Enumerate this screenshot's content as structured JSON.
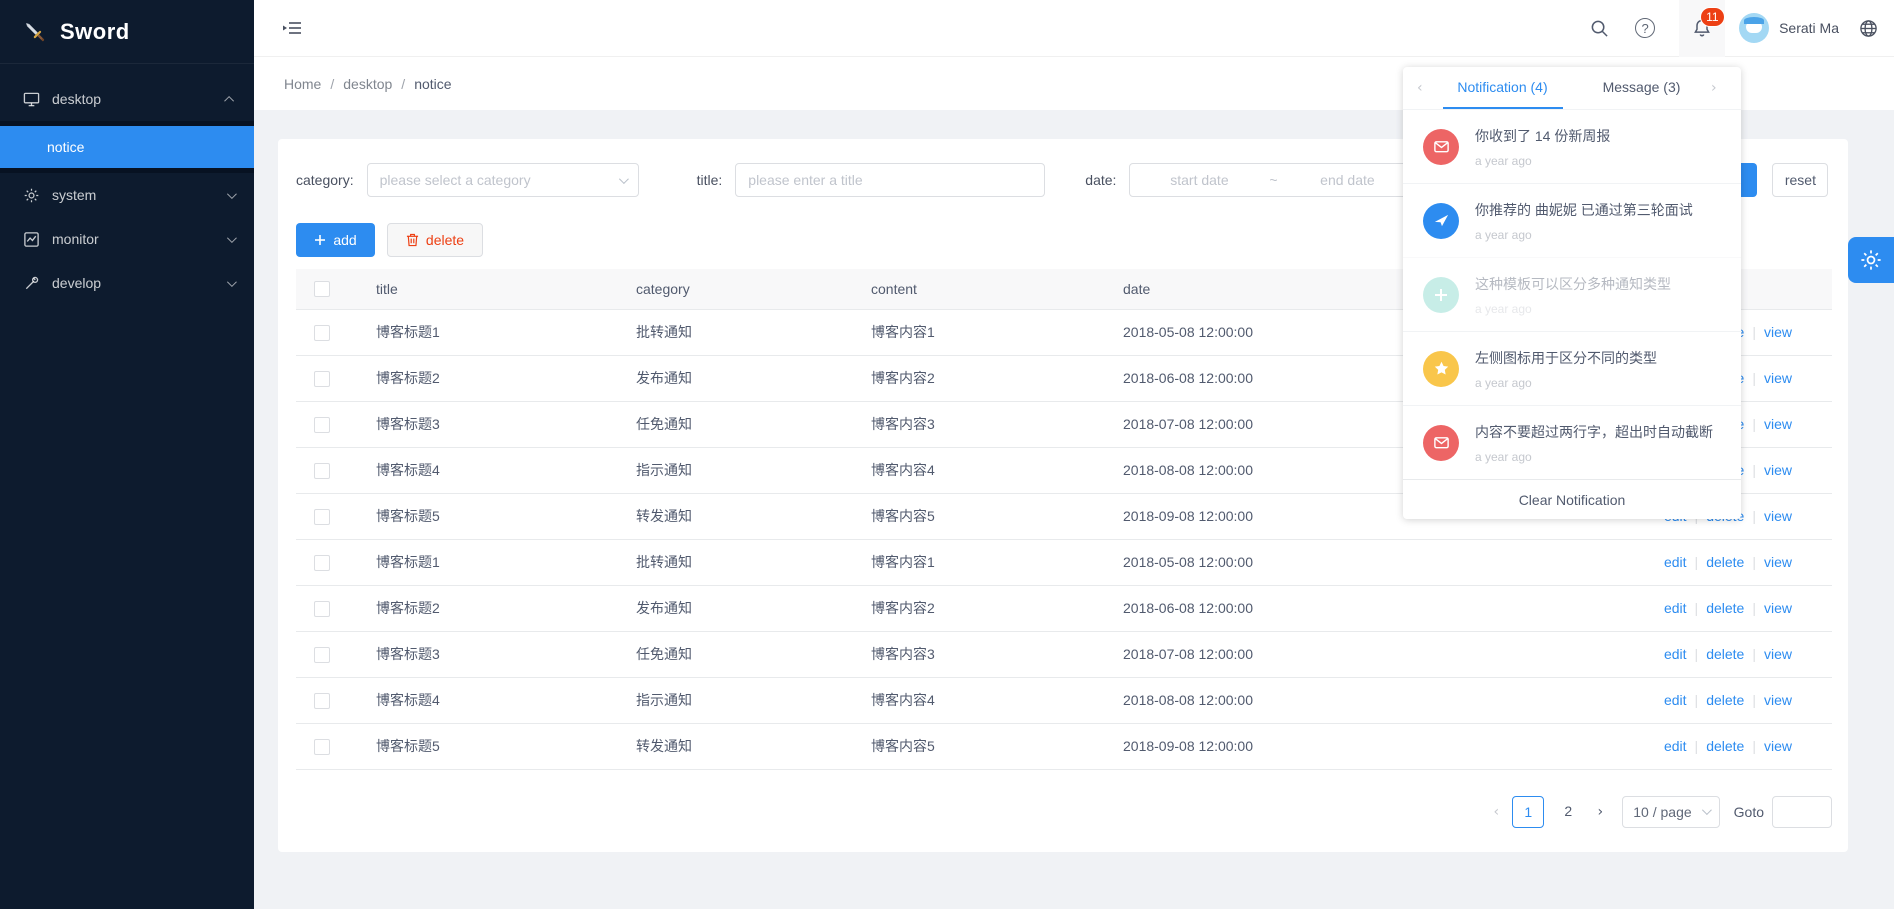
{
  "app": {
    "name": "Sword"
  },
  "sidebar": {
    "items": [
      {
        "label": "desktop"
      },
      {
        "label": "notice"
      },
      {
        "label": "system"
      },
      {
        "label": "monitor"
      },
      {
        "label": "develop"
      }
    ]
  },
  "topbar": {
    "breadcrumb": {
      "home": "Home",
      "section": "desktop",
      "page": "notice"
    },
    "badge_count": "11",
    "user_name": "Serati Ma",
    "help_glyph": "?"
  },
  "notification_panel": {
    "tabs": {
      "notification": "Notification (4)",
      "message": "Message (3)"
    },
    "items": [
      {
        "icon": "mail-icon",
        "color": "#ed6565",
        "title": "你收到了 14 份新周报",
        "time": "a year ago",
        "read": false
      },
      {
        "icon": "wing-icon",
        "color": "#2d8cf0",
        "title": "你推荐的 曲妮妮 已通过第三轮面试",
        "time": "a year ago",
        "read": false
      },
      {
        "icon": "plus-icon",
        "color": "#7bd5c8",
        "title": "这种模板可以区分多种通知类型",
        "time": "a year ago",
        "read": true
      },
      {
        "icon": "star-icon",
        "color": "#f9c64b",
        "title": "左侧图标用于区分不同的类型",
        "time": "a year ago",
        "read": false
      },
      {
        "icon": "mail-icon",
        "color": "#ed6565",
        "title": "内容不要超过两行字，超出时自动截断",
        "time": "a year ago",
        "read": false
      }
    ],
    "footer": "Clear Notification",
    "prev_glyph": "‹",
    "next_glyph": "›"
  },
  "filters": {
    "category_label": "category:",
    "category_placeholder": "please select a category",
    "title_label": "title:",
    "title_placeholder": "please enter a title",
    "date_label": "date:",
    "date_start_placeholder": "start date",
    "date_separator": "~",
    "date_end_placeholder": "end date",
    "search_label": "search",
    "reset_label": "reset"
  },
  "toolbar": {
    "add_label": "add",
    "delete_label": "delete"
  },
  "table": {
    "columns": {
      "title": "title",
      "category": "category",
      "content": "content",
      "date": "date"
    },
    "actions": {
      "edit": "edit",
      "delete": "delete",
      "view": "view"
    },
    "rows": [
      {
        "title": "博客标题1",
        "category": "批转通知",
        "content": "博客内容1",
        "date": "2018-05-08 12:00:00"
      },
      {
        "title": "博客标题2",
        "category": "发布通知",
        "content": "博客内容2",
        "date": "2018-06-08 12:00:00"
      },
      {
        "title": "博客标题3",
        "category": "任免通知",
        "content": "博客内容3",
        "date": "2018-07-08 12:00:00"
      },
      {
        "title": "博客标题4",
        "category": "指示通知",
        "content": "博客内容4",
        "date": "2018-08-08 12:00:00"
      },
      {
        "title": "博客标题5",
        "category": "转发通知",
        "content": "博客内容5",
        "date": "2018-09-08 12:00:00"
      },
      {
        "title": "博客标题1",
        "category": "批转通知",
        "content": "博客内容1",
        "date": "2018-05-08 12:00:00"
      },
      {
        "title": "博客标题2",
        "category": "发布通知",
        "content": "博客内容2",
        "date": "2018-06-08 12:00:00"
      },
      {
        "title": "博客标题3",
        "category": "任免通知",
        "content": "博客内容3",
        "date": "2018-07-08 12:00:00"
      },
      {
        "title": "博客标题4",
        "category": "指示通知",
        "content": "博客内容4",
        "date": "2018-08-08 12:00:00"
      },
      {
        "title": "博客标题5",
        "category": "转发通知",
        "content": "博客内容5",
        "date": "2018-09-08 12:00:00"
      }
    ]
  },
  "pagination": {
    "prev_glyph": "‹",
    "next_glyph": "›",
    "page1": "1",
    "page2": "2",
    "page_size": "10 / page",
    "goto_label": "Goto"
  },
  "colors": {
    "primary": "#2d8cf0",
    "danger": "#ed4014",
    "badge": "#ed4014",
    "sidebar": "#0d1b2e"
  }
}
